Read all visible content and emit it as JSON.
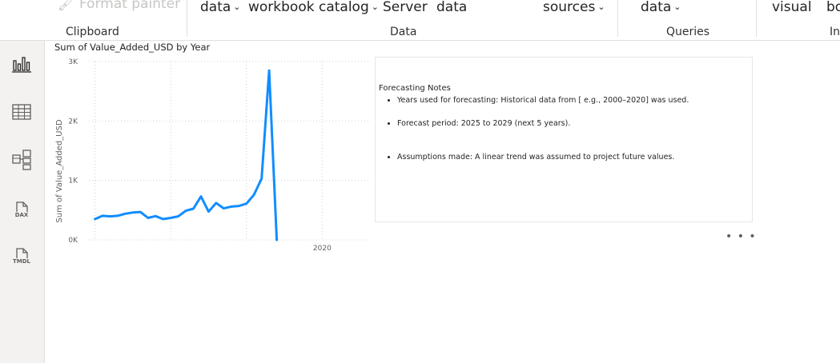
{
  "ribbon": {
    "format_painter": "Format painter",
    "data_button_1": "data",
    "workbook_catalog": "workbook catalog",
    "server": "Server",
    "data_button_2": "data",
    "sources": "sources",
    "data_button_3": "data",
    "visual": "visual",
    "partial_right": "bo",
    "groups": {
      "clipboard": "Clipboard",
      "data": "Data",
      "queries": "Queries",
      "insert_partial": "In"
    }
  },
  "leftrail": {
    "icons": [
      "report-view-icon",
      "table-view-icon",
      "model-view-icon",
      "dax-query-view-icon",
      "tmdl-view-icon"
    ],
    "dax_label": "DAX",
    "tmdl_label": "TMDL"
  },
  "chart_data": {
    "type": "line",
    "title": "Sum of Value_Added_USD by Year",
    "xlabel": "",
    "ylabel": "Sum of Value_Added_USD",
    "y_ticks": [
      "0K",
      "1K",
      "2K",
      "3K"
    ],
    "x_tick_labels": [
      {
        "label": "2020",
        "x": 2020
      }
    ],
    "ylim": [
      0,
      3000
    ],
    "xlim": [
      1989.2,
      2026.2
    ],
    "grid": true,
    "series": [
      {
        "color": "#118DFF",
        "x": [
          1990,
          1991,
          1992,
          1993,
          1994,
          1995,
          1996,
          1997,
          1998,
          1999,
          2000,
          2001,
          2002,
          2003,
          2004,
          2005,
          2006,
          2007,
          2008,
          2009,
          2010,
          2011,
          2012,
          2013,
          2014
        ],
        "values": [
          350,
          405,
          395,
          405,
          440,
          460,
          470,
          370,
          400,
          350,
          370,
          395,
          490,
          525,
          730,
          475,
          620,
          530,
          560,
          570,
          610,
          760,
          1030,
          2850,
          0
        ]
      }
    ]
  },
  "notes": {
    "title": "Forecasting Notes",
    "items": [
      "Years used for forecasting: Historical data from [ e.g., 2000–2020] was used.",
      "Forecast period: 2025 to 2029 (next 5 years).",
      "Assumptions made: A linear trend was assumed to project future values."
    ]
  },
  "more_options": "• • •"
}
